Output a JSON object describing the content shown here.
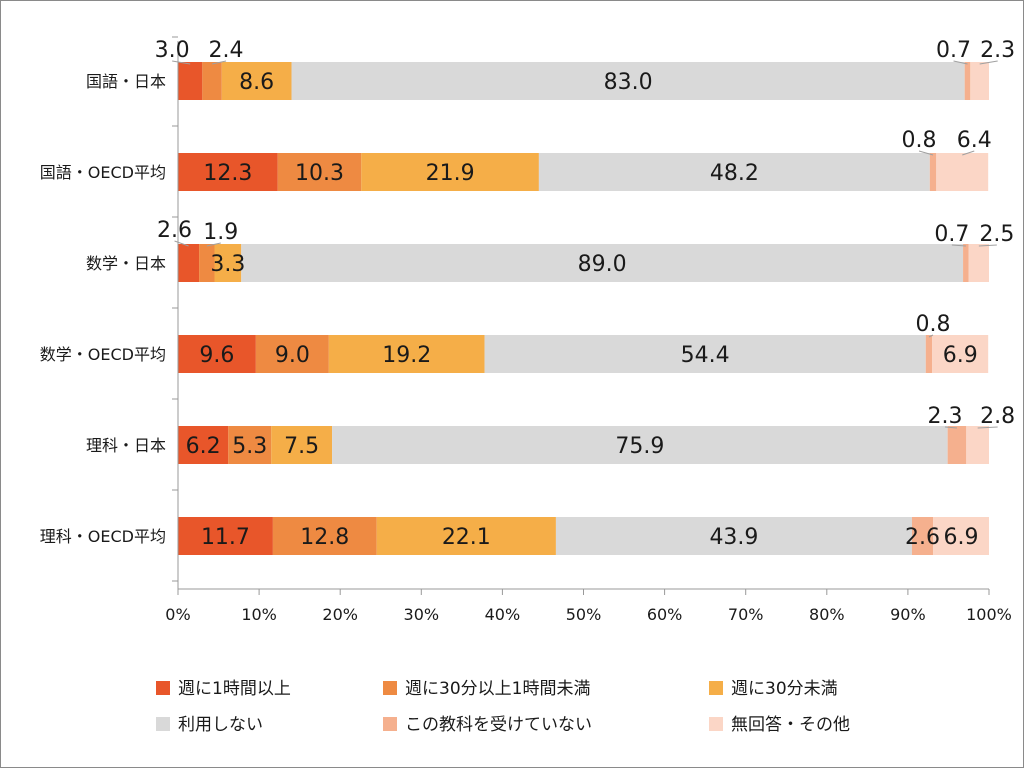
{
  "colors": {
    "週に1時間以上": "#e8562a",
    "週に30分以上1時間未満": "#ee8a42",
    "週に30分未満": "#f5ae48",
    "利用しない": "#d9d9d9",
    "この教科を受けていない": "#f5b08e",
    "無回答・その他": "#fbd6c6",
    "axis": "#999999",
    "label": "#1a1a1a"
  },
  "chart_data": {
    "type": "bar",
    "orientation": "horizontal",
    "stacked": "percent",
    "categories": [
      "国語・日本",
      "国語・OECD平均",
      "数学・日本",
      "数学・OECD平均",
      "理科・日本",
      "理科・OECD平均"
    ],
    "series": [
      {
        "name": "週に1時間以上",
        "values": [
          3.0,
          12.3,
          2.6,
          9.6,
          6.2,
          11.7
        ],
        "labels": [
          "3.0",
          "12.3",
          "2.6",
          "9.6",
          "6.2",
          "11.7"
        ]
      },
      {
        "name": "週に30分以上1時間未満",
        "values": [
          2.4,
          10.3,
          1.9,
          9.0,
          5.3,
          12.8
        ],
        "labels": [
          "2.4",
          "10.3",
          "1.9",
          "9.0",
          "5.3",
          "12.8"
        ]
      },
      {
        "name": "週に30分未満",
        "values": [
          8.6,
          21.9,
          3.3,
          19.2,
          7.5,
          22.1
        ],
        "labels": [
          "8.6",
          "21.9",
          "3.3",
          "19.2",
          "7.5",
          "22.1"
        ]
      },
      {
        "name": "利用しない",
        "values": [
          83.0,
          48.2,
          89.0,
          54.4,
          75.9,
          43.9
        ],
        "labels": [
          "83.0",
          "48.2",
          "89.0",
          "54.4",
          "75.9",
          "43.9"
        ]
      },
      {
        "name": "この教科を受けていない",
        "values": [
          0.7,
          0.8,
          0.7,
          0.8,
          2.3,
          2.6
        ],
        "labels": [
          "0.7",
          "0.8",
          "0.7",
          "0.8",
          "2.3",
          "2.6"
        ]
      },
      {
        "name": "無回答・その他",
        "values": [
          2.3,
          6.4,
          2.5,
          6.9,
          2.8,
          6.9
        ],
        "labels": [
          "2.3",
          "6.4",
          "2.5",
          "6.9",
          "2.8",
          "6.9"
        ]
      }
    ],
    "x_ticks": [
      "0%",
      "10%",
      "20%",
      "30%",
      "40%",
      "50%",
      "60%",
      "70%",
      "80%",
      "90%",
      "100%"
    ],
    "xlim": [
      0,
      100
    ],
    "grid": false,
    "legend": {
      "position": "bottom",
      "columns": 3,
      "entries": [
        "週に1時間以上",
        "週に30分以上1時間未満",
        "週に30分未満",
        "利用しない",
        "この教科を受けていない",
        "無回答・その他"
      ]
    }
  }
}
